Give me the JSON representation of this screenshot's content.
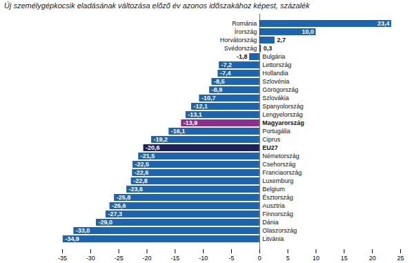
{
  "chart_data": {
    "type": "bar",
    "orientation": "horizontal",
    "title": "Új személygépkocsik eladásának változása előző év azonos időszakához képest, százalék",
    "categories": [
      "Románia",
      "Írország",
      "Horvátország",
      "Svédország",
      "Bulgária",
      "Lettország",
      "Hollandia",
      "Szlovénia",
      "Görögország",
      "Szlovákia",
      "Spanyolország",
      "Lengyelország",
      "Magyarország",
      "Portugália",
      "Ciprus",
      "EU27",
      "Németország",
      "Csehország",
      "Franciaország",
      "Luxemburg",
      "Belgium",
      "Észtország",
      "Ausztria",
      "Finnország",
      "Dánia",
      "Olaszország",
      "Litvánia"
    ],
    "values": [
      23.4,
      10.0,
      2.7,
      0.3,
      -1.8,
      -7.2,
      -7.4,
      -8.5,
      -8.9,
      -10.7,
      -12.1,
      -13.1,
      -13.9,
      -16.1,
      -19.2,
      -20.6,
      -21.5,
      -22.5,
      -22.6,
      -22.8,
      -23.6,
      -25.8,
      -26.6,
      -27.3,
      -29.0,
      -33.0,
      -34.9
    ],
    "value_labels": [
      "23,4",
      "10,0",
      "2,7",
      "0,3",
      "-1,8",
      "-7,2",
      "-7,4",
      "-8,5",
      "-8,9",
      "-10,7",
      "-12,1",
      "-13,1",
      "-13,9",
      "-16,1",
      "-19,2",
      "-20,6",
      "-21,5",
      "-22,5",
      "-22,6",
      "-22,8",
      "-23,6",
      "-25,8",
      "-26,6",
      "-27,3",
      "-29,0",
      "-33,0",
      "-34,9"
    ],
    "colors": [
      "#1d63ad",
      "#1d63ad",
      "#1d63ad",
      "#1d63ad",
      "#1d63ad",
      "#1d63ad",
      "#1d63ad",
      "#1d63ad",
      "#1d63ad",
      "#1d63ad",
      "#1d63ad",
      "#1d63ad",
      "#8b2f8f",
      "#1d63ad",
      "#1d63ad",
      "#1b1f5e",
      "#1d63ad",
      "#1d63ad",
      "#1d63ad",
      "#1d63ad",
      "#1d63ad",
      "#1d63ad",
      "#1d63ad",
      "#1d63ad",
      "#1d63ad",
      "#1d63ad",
      "#1d63ad"
    ],
    "data_labels": true,
    "xlim": [
      -35,
      25
    ],
    "xticks": [
      -35,
      -30,
      -25,
      -20,
      -15,
      -10,
      -5,
      0,
      5,
      10,
      15,
      20,
      25
    ]
  }
}
